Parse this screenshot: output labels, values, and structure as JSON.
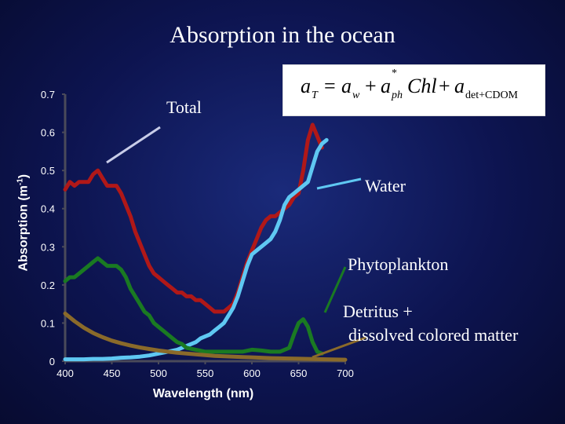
{
  "title": "Absorption in the ocean",
  "equation": {
    "lhs": "a",
    "lhs_sub": "T",
    "eq": "=",
    "t1": "a",
    "t1_sub": "w",
    "plus": "+",
    "t2": "a",
    "t2_sup": "*",
    "t2_sub": "ph",
    "chl": "Chl",
    "t3": "a",
    "t3_sub": "det+CDOM"
  },
  "labels": {
    "total": "Total",
    "water": "Water",
    "phytoplankton": "Phytoplankton",
    "detritus_line1": "Detritus +",
    "detritus_line2": "dissolved colored matter"
  },
  "chart_data": {
    "type": "line",
    "title": "",
    "xlabel": "Wavelength (nm)",
    "ylabel_main": "Absorption (m",
    "ylabel_sup": "-1",
    "ylabel_end": ")",
    "xlim": [
      400,
      700
    ],
    "ylim": [
      0,
      0.7
    ],
    "x_ticks": [
      400,
      450,
      500,
      550,
      600,
      650,
      700
    ],
    "x_tick_labels": [
      "400",
      "450",
      "500",
      "550",
      "600",
      "650",
      "700"
    ],
    "y_ticks": [
      0,
      0.1,
      0.2,
      0.3,
      0.4,
      0.5,
      0.6,
      0.7
    ],
    "y_tick_labels": [
      "0",
      "0.1",
      "0.2",
      "0.3",
      "0.4",
      "0.5",
      "0.6",
      "0.7"
    ],
    "series": [
      {
        "name": "Total",
        "color": "#b01818",
        "x": [
          400,
          405,
          410,
          415,
          420,
          425,
          430,
          435,
          440,
          445,
          450,
          455,
          460,
          465,
          470,
          475,
          480,
          485,
          490,
          495,
          500,
          505,
          510,
          515,
          520,
          525,
          530,
          535,
          540,
          545,
          550,
          555,
          560,
          565,
          570,
          575,
          580,
          585,
          590,
          595,
          600,
          605,
          610,
          615,
          620,
          625,
          630,
          635,
          640,
          645,
          650,
          655,
          660,
          665,
          670,
          675
        ],
        "y": [
          0.45,
          0.47,
          0.46,
          0.47,
          0.47,
          0.47,
          0.49,
          0.5,
          0.48,
          0.46,
          0.46,
          0.46,
          0.44,
          0.41,
          0.38,
          0.34,
          0.31,
          0.28,
          0.25,
          0.23,
          0.22,
          0.21,
          0.2,
          0.19,
          0.18,
          0.18,
          0.17,
          0.17,
          0.16,
          0.16,
          0.15,
          0.14,
          0.13,
          0.13,
          0.13,
          0.14,
          0.15,
          0.18,
          0.22,
          0.26,
          0.29,
          0.32,
          0.35,
          0.37,
          0.38,
          0.38,
          0.39,
          0.4,
          0.41,
          0.43,
          0.44,
          0.5,
          0.58,
          0.62,
          0.59,
          0.56
        ]
      },
      {
        "name": "Water",
        "color": "#5fc8f2",
        "x": [
          400,
          410,
          420,
          430,
          440,
          450,
          460,
          470,
          480,
          490,
          500,
          510,
          520,
          530,
          540,
          545,
          550,
          555,
          560,
          565,
          570,
          575,
          580,
          585,
          590,
          595,
          600,
          605,
          610,
          615,
          620,
          625,
          630,
          635,
          640,
          645,
          650,
          655,
          660,
          665,
          670,
          675,
          680
        ],
        "y": [
          0.005,
          0.005,
          0.005,
          0.006,
          0.006,
          0.007,
          0.009,
          0.01,
          0.012,
          0.015,
          0.02,
          0.025,
          0.03,
          0.04,
          0.05,
          0.06,
          0.065,
          0.07,
          0.08,
          0.09,
          0.1,
          0.12,
          0.14,
          0.17,
          0.21,
          0.25,
          0.28,
          0.29,
          0.3,
          0.31,
          0.32,
          0.34,
          0.37,
          0.41,
          0.43,
          0.44,
          0.45,
          0.46,
          0.47,
          0.51,
          0.55,
          0.57,
          0.58
        ]
      },
      {
        "name": "Phytoplankton",
        "color": "#1a7a22",
        "x": [
          400,
          405,
          410,
          415,
          420,
          425,
          430,
          435,
          440,
          445,
          450,
          455,
          460,
          465,
          470,
          475,
          480,
          485,
          490,
          495,
          500,
          505,
          510,
          515,
          520,
          525,
          530,
          540,
          550,
          560,
          570,
          580,
          590,
          600,
          610,
          620,
          630,
          640,
          645,
          650,
          655,
          660,
          665,
          670,
          675
        ],
        "y": [
          0.21,
          0.22,
          0.22,
          0.23,
          0.24,
          0.25,
          0.26,
          0.27,
          0.26,
          0.25,
          0.25,
          0.25,
          0.24,
          0.22,
          0.19,
          0.17,
          0.15,
          0.13,
          0.12,
          0.1,
          0.09,
          0.08,
          0.07,
          0.06,
          0.05,
          0.045,
          0.035,
          0.03,
          0.025,
          0.025,
          0.025,
          0.025,
          0.025,
          0.03,
          0.028,
          0.025,
          0.025,
          0.035,
          0.07,
          0.1,
          0.11,
          0.09,
          0.05,
          0.025,
          0.02
        ]
      },
      {
        "name": "Detritus + dissolved colored matter",
        "color": "#8a6a2a",
        "x": [
          400,
          410,
          420,
          430,
          440,
          450,
          460,
          470,
          480,
          490,
          500,
          510,
          520,
          530,
          540,
          550,
          560,
          570,
          580,
          590,
          600,
          620,
          640,
          660,
          680,
          700
        ],
        "y": [
          0.125,
          0.105,
          0.088,
          0.074,
          0.063,
          0.054,
          0.047,
          0.041,
          0.036,
          0.032,
          0.028,
          0.025,
          0.022,
          0.02,
          0.018,
          0.016,
          0.014,
          0.013,
          0.012,
          0.011,
          0.01,
          0.008,
          0.007,
          0.006,
          0.005,
          0.004
        ]
      }
    ]
  }
}
